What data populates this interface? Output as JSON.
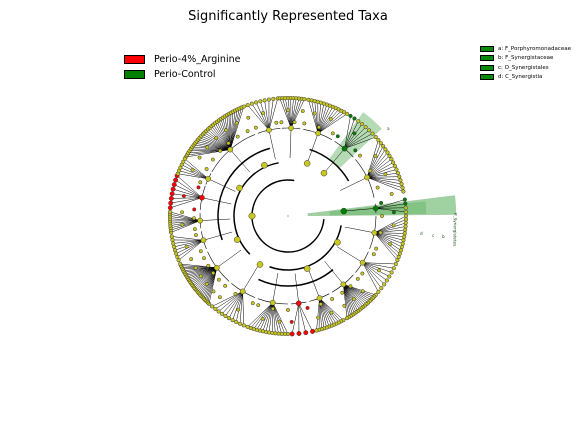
{
  "title": "Significantly Represented Taxa",
  "group_legend": [
    {
      "label": "Perio-4%_Arginine",
      "color": "#ff0000"
    },
    {
      "label": "Perio-Control",
      "color": "#008000"
    }
  ],
  "clade_legend": [
    {
      "key": "a",
      "label": "a: F_Porphyromonadaceae"
    },
    {
      "key": "b",
      "label": "b: F_Synergistaceae"
    },
    {
      "key": "c",
      "label": "c: O_Synergistales"
    },
    {
      "key": "d",
      "label": "d: C_Synergistia"
    }
  ],
  "highlight_labels": {
    "synergistales_letters": [
      "d",
      "c",
      "b"
    ],
    "synergistales_text": "P_Synergistetes",
    "porphyro_letter": "a"
  },
  "colors": {
    "node": "#c8c820",
    "enriched_control": "#008000",
    "enriched_arginine": "#ff0000",
    "highlight": "#2e9a2e"
  }
}
